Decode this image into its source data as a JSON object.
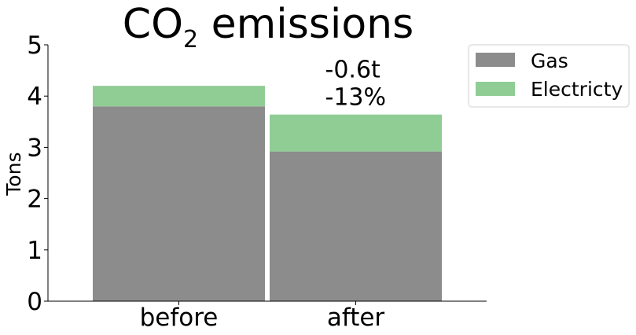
{
  "chart_data": {
    "type": "bar",
    "stacked": true,
    "title_main": "CO",
    "title_sub": "2",
    "title_rest": " emissions",
    "xlabel": "",
    "ylabel": "Tons",
    "ylim": [
      0,
      5
    ],
    "yticks": [
      "0",
      "1",
      "2",
      "3",
      "4",
      "5"
    ],
    "categories": [
      "before",
      "after"
    ],
    "series": [
      {
        "name": "Gas",
        "color": "#8c8c8c",
        "values": [
          3.8,
          2.92
        ]
      },
      {
        "name": "Electricty",
        "color": "#90cd95",
        "values": [
          0.4,
          0.72
        ]
      }
    ],
    "annotation": {
      "category": "after",
      "lines": [
        "-0.6t",
        "-13%"
      ]
    },
    "legend_position": "top-right outside",
    "grid": false
  }
}
